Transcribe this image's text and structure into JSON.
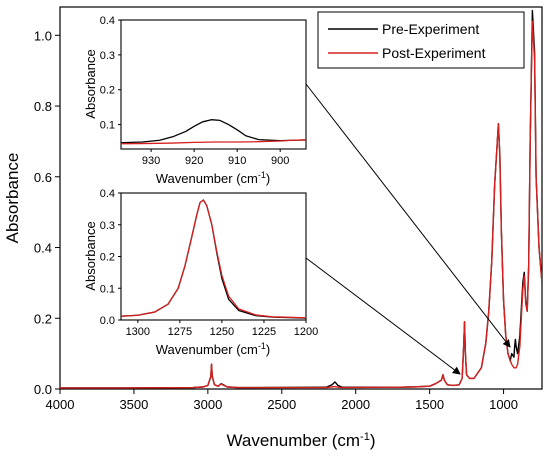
{
  "chart_data": {
    "main": {
      "type": "line",
      "xlabel": "Wavenumber (cm",
      "xlabel_sup": "-1",
      "xlabel_end": ")",
      "ylabel": "Absorbance",
      "xlim": [
        4000,
        740
      ],
      "ylim": [
        0.0,
        1.08
      ],
      "xticks": [
        4000,
        3500,
        3000,
        2500,
        2000,
        1500,
        1000
      ],
      "xtick_labels": [
        "4000",
        "3500",
        "3000",
        "2500",
        "2000",
        "1500",
        "1000"
      ],
      "yticks": [
        0.0,
        0.2,
        0.4,
        0.6,
        0.8,
        1.0
      ],
      "ytick_labels": [
        "0.0",
        "0.2",
        "0.4",
        "0.6",
        "0.8",
        "1.0"
      ],
      "legend": {
        "placement": "top-right",
        "entries": [
          {
            "label": "Pre-Experiment",
            "color": "#000000"
          },
          {
            "label": "Post-Experiment",
            "color": "#d62020"
          }
        ]
      },
      "series": [
        {
          "color": "#000000",
          "points": [
            [
              4000,
              0.003
            ],
            [
              3600,
              0.003
            ],
            [
              3100,
              0.004
            ],
            [
              3030,
              0.006
            ],
            [
              3000,
              0.01
            ],
            [
              2980,
              0.035
            ],
            [
              2975,
              0.07
            ],
            [
              2970,
              0.035
            ],
            [
              2955,
              0.012
            ],
            [
              2930,
              0.008
            ],
            [
              2910,
              0.015
            ],
            [
              2895,
              0.012
            ],
            [
              2870,
              0.006
            ],
            [
              2800,
              0.004
            ],
            [
              2200,
              0.005
            ],
            [
              2160,
              0.012
            ],
            [
              2140,
              0.02
            ],
            [
              2120,
              0.01
            ],
            [
              2090,
              0.005
            ],
            [
              1700,
              0.005
            ],
            [
              1600,
              0.006
            ],
            [
              1500,
              0.008
            ],
            [
              1460,
              0.015
            ],
            [
              1420,
              0.025
            ],
            [
              1410,
              0.04
            ],
            [
              1400,
              0.025
            ],
            [
              1380,
              0.012
            ],
            [
              1340,
              0.01
            ],
            [
              1300,
              0.012
            ],
            [
              1280,
              0.03
            ],
            [
              1270,
              0.12
            ],
            [
              1264,
              0.19
            ],
            [
              1258,
              0.1
            ],
            [
              1250,
              0.04
            ],
            [
              1230,
              0.03
            ],
            [
              1200,
              0.03
            ],
            [
              1150,
              0.06
            ],
            [
              1120,
              0.13
            ],
            [
              1100,
              0.22
            ],
            [
              1080,
              0.36
            ],
            [
              1060,
              0.58
            ],
            [
              1045,
              0.68
            ],
            [
              1035,
              0.75
            ],
            [
              1025,
              0.66
            ],
            [
              1015,
              0.45
            ],
            [
              1000,
              0.25
            ],
            [
              985,
              0.15
            ],
            [
              970,
              0.1
            ],
            [
              955,
              0.08
            ],
            [
              945,
              0.1
            ],
            [
              930,
              0.09
            ],
            [
              925,
              0.12
            ],
            [
              920,
              0.14
            ],
            [
              915,
              0.12
            ],
            [
              905,
              0.1
            ],
            [
              890,
              0.15
            ],
            [
              870,
              0.3
            ],
            [
              860,
              0.33
            ],
            [
              850,
              0.25
            ],
            [
              840,
              0.22
            ],
            [
              830,
              0.35
            ],
            [
              820,
              0.7
            ],
            [
              805,
              1.07
            ],
            [
              790,
              0.95
            ],
            [
              780,
              0.6
            ],
            [
              760,
              0.4
            ],
            [
              740,
              0.3
            ]
          ]
        },
        {
          "color": "#d62020",
          "points": [
            [
              4000,
              0.003
            ],
            [
              3600,
              0.003
            ],
            [
              3100,
              0.004
            ],
            [
              3030,
              0.006
            ],
            [
              3000,
              0.01
            ],
            [
              2980,
              0.035
            ],
            [
              2975,
              0.07
            ],
            [
              2970,
              0.035
            ],
            [
              2955,
              0.012
            ],
            [
              2930,
              0.008
            ],
            [
              2910,
              0.014
            ],
            [
              2895,
              0.011
            ],
            [
              2870,
              0.006
            ],
            [
              2800,
              0.004
            ],
            [
              2200,
              0.004
            ],
            [
              2160,
              0.006
            ],
            [
              2140,
              0.007
            ],
            [
              2120,
              0.005
            ],
            [
              2090,
              0.004
            ],
            [
              1700,
              0.005
            ],
            [
              1600,
              0.006
            ],
            [
              1500,
              0.008
            ],
            [
              1460,
              0.015
            ],
            [
              1420,
              0.025
            ],
            [
              1410,
              0.04
            ],
            [
              1400,
              0.025
            ],
            [
              1380,
              0.012
            ],
            [
              1340,
              0.01
            ],
            [
              1300,
              0.012
            ],
            [
              1280,
              0.03
            ],
            [
              1270,
              0.12
            ],
            [
              1264,
              0.19
            ],
            [
              1258,
              0.1
            ],
            [
              1250,
              0.04
            ],
            [
              1230,
              0.03
            ],
            [
              1200,
              0.03
            ],
            [
              1150,
              0.06
            ],
            [
              1120,
              0.13
            ],
            [
              1100,
              0.22
            ],
            [
              1080,
              0.36
            ],
            [
              1060,
              0.58
            ],
            [
              1045,
              0.68
            ],
            [
              1035,
              0.75
            ],
            [
              1025,
              0.66
            ],
            [
              1015,
              0.45
            ],
            [
              1000,
              0.25
            ],
            [
              985,
              0.15
            ],
            [
              970,
              0.1
            ],
            [
              955,
              0.08
            ],
            [
              945,
              0.07
            ],
            [
              930,
              0.06
            ],
            [
              920,
              0.06
            ],
            [
              915,
              0.06
            ],
            [
              905,
              0.07
            ],
            [
              890,
              0.12
            ],
            [
              870,
              0.28
            ],
            [
              860,
              0.32
            ],
            [
              850,
              0.24
            ],
            [
              840,
              0.22
            ],
            [
              830,
              0.35
            ],
            [
              820,
              0.7
            ],
            [
              805,
              1.04
            ],
            [
              790,
              0.93
            ],
            [
              780,
              0.6
            ],
            [
              760,
              0.4
            ],
            [
              740,
              0.3
            ]
          ]
        }
      ]
    },
    "inset_top": {
      "type": "line",
      "xlabel": "Wavenumber (cm",
      "xlabel_sup": "-1",
      "xlabel_end": ")",
      "ylabel": "Absorbance",
      "xlim": [
        937,
        894
      ],
      "ylim": [
        0.03,
        0.4
      ],
      "xticks": [
        930,
        920,
        910,
        900
      ],
      "xtick_labels": [
        "930",
        "920",
        "910",
        "900"
      ],
      "yticks": [
        0.1,
        0.2,
        0.3,
        0.4
      ],
      "ytick_labels": [
        "0.1",
        "0.2",
        "0.3",
        "0.4"
      ],
      "series": [
        {
          "color": "#000000",
          "points": [
            [
              937,
              0.048
            ],
            [
              932,
              0.05
            ],
            [
              928,
              0.055
            ],
            [
              925,
              0.065
            ],
            [
              922,
              0.08
            ],
            [
              920,
              0.095
            ],
            [
              918,
              0.108
            ],
            [
              916,
              0.114
            ],
            [
              914,
              0.112
            ],
            [
              912,
              0.1
            ],
            [
              910,
              0.085
            ],
            [
              908,
              0.068
            ],
            [
              905,
              0.057
            ],
            [
              900,
              0.054
            ],
            [
              897,
              0.055
            ],
            [
              894,
              0.056
            ]
          ]
        },
        {
          "color": "#d62020",
          "points": [
            [
              937,
              0.045
            ],
            [
              930,
              0.046
            ],
            [
              925,
              0.047
            ],
            [
              920,
              0.049
            ],
            [
              915,
              0.05
            ],
            [
              910,
              0.05
            ],
            [
              905,
              0.051
            ],
            [
              900,
              0.053
            ],
            [
              897,
              0.055
            ],
            [
              894,
              0.056
            ]
          ]
        }
      ]
    },
    "inset_bottom": {
      "type": "line",
      "xlabel": "Wavenumber (cm",
      "xlabel_sup": "-1",
      "xlabel_end": ")",
      "ylabel": "Absorbance",
      "xlim": [
        1310,
        1200
      ],
      "ylim": [
        0.0,
        0.4
      ],
      "xticks": [
        1300,
        1275,
        1250,
        1225,
        1200
      ],
      "xtick_labels": [
        "1300",
        "1275",
        "1250",
        "1225",
        "1200"
      ],
      "yticks": [
        0.0,
        0.1,
        0.2,
        0.3,
        0.4
      ],
      "ytick_labels": [
        "0.0",
        "0.1",
        "0.2",
        "0.3",
        "0.4"
      ],
      "series": [
        {
          "color": "#000000",
          "points": [
            [
              1310,
              0.012
            ],
            [
              1300,
              0.015
            ],
            [
              1290,
              0.025
            ],
            [
              1282,
              0.05
            ],
            [
              1276,
              0.1
            ],
            [
              1272,
              0.17
            ],
            [
              1268,
              0.26
            ],
            [
              1265,
              0.33
            ],
            [
              1263,
              0.37
            ],
            [
              1261,
              0.378
            ],
            [
              1259,
              0.36
            ],
            [
              1256,
              0.3
            ],
            [
              1253,
              0.21
            ],
            [
              1250,
              0.13
            ],
            [
              1246,
              0.065
            ],
            [
              1240,
              0.03
            ],
            [
              1230,
              0.014
            ],
            [
              1220,
              0.009
            ],
            [
              1200,
              0.006
            ]
          ]
        },
        {
          "color": "#d62020",
          "points": [
            [
              1310,
              0.012
            ],
            [
              1300,
              0.015
            ],
            [
              1290,
              0.025
            ],
            [
              1282,
              0.05
            ],
            [
              1276,
              0.1
            ],
            [
              1272,
              0.17
            ],
            [
              1268,
              0.26
            ],
            [
              1265,
              0.33
            ],
            [
              1263,
              0.37
            ],
            [
              1261,
              0.378
            ],
            [
              1259,
              0.36
            ],
            [
              1256,
              0.3
            ],
            [
              1253,
              0.215
            ],
            [
              1250,
              0.14
            ],
            [
              1246,
              0.075
            ],
            [
              1240,
              0.035
            ],
            [
              1230,
              0.016
            ],
            [
              1220,
              0.01
            ],
            [
              1200,
              0.007
            ]
          ]
        }
      ]
    }
  }
}
